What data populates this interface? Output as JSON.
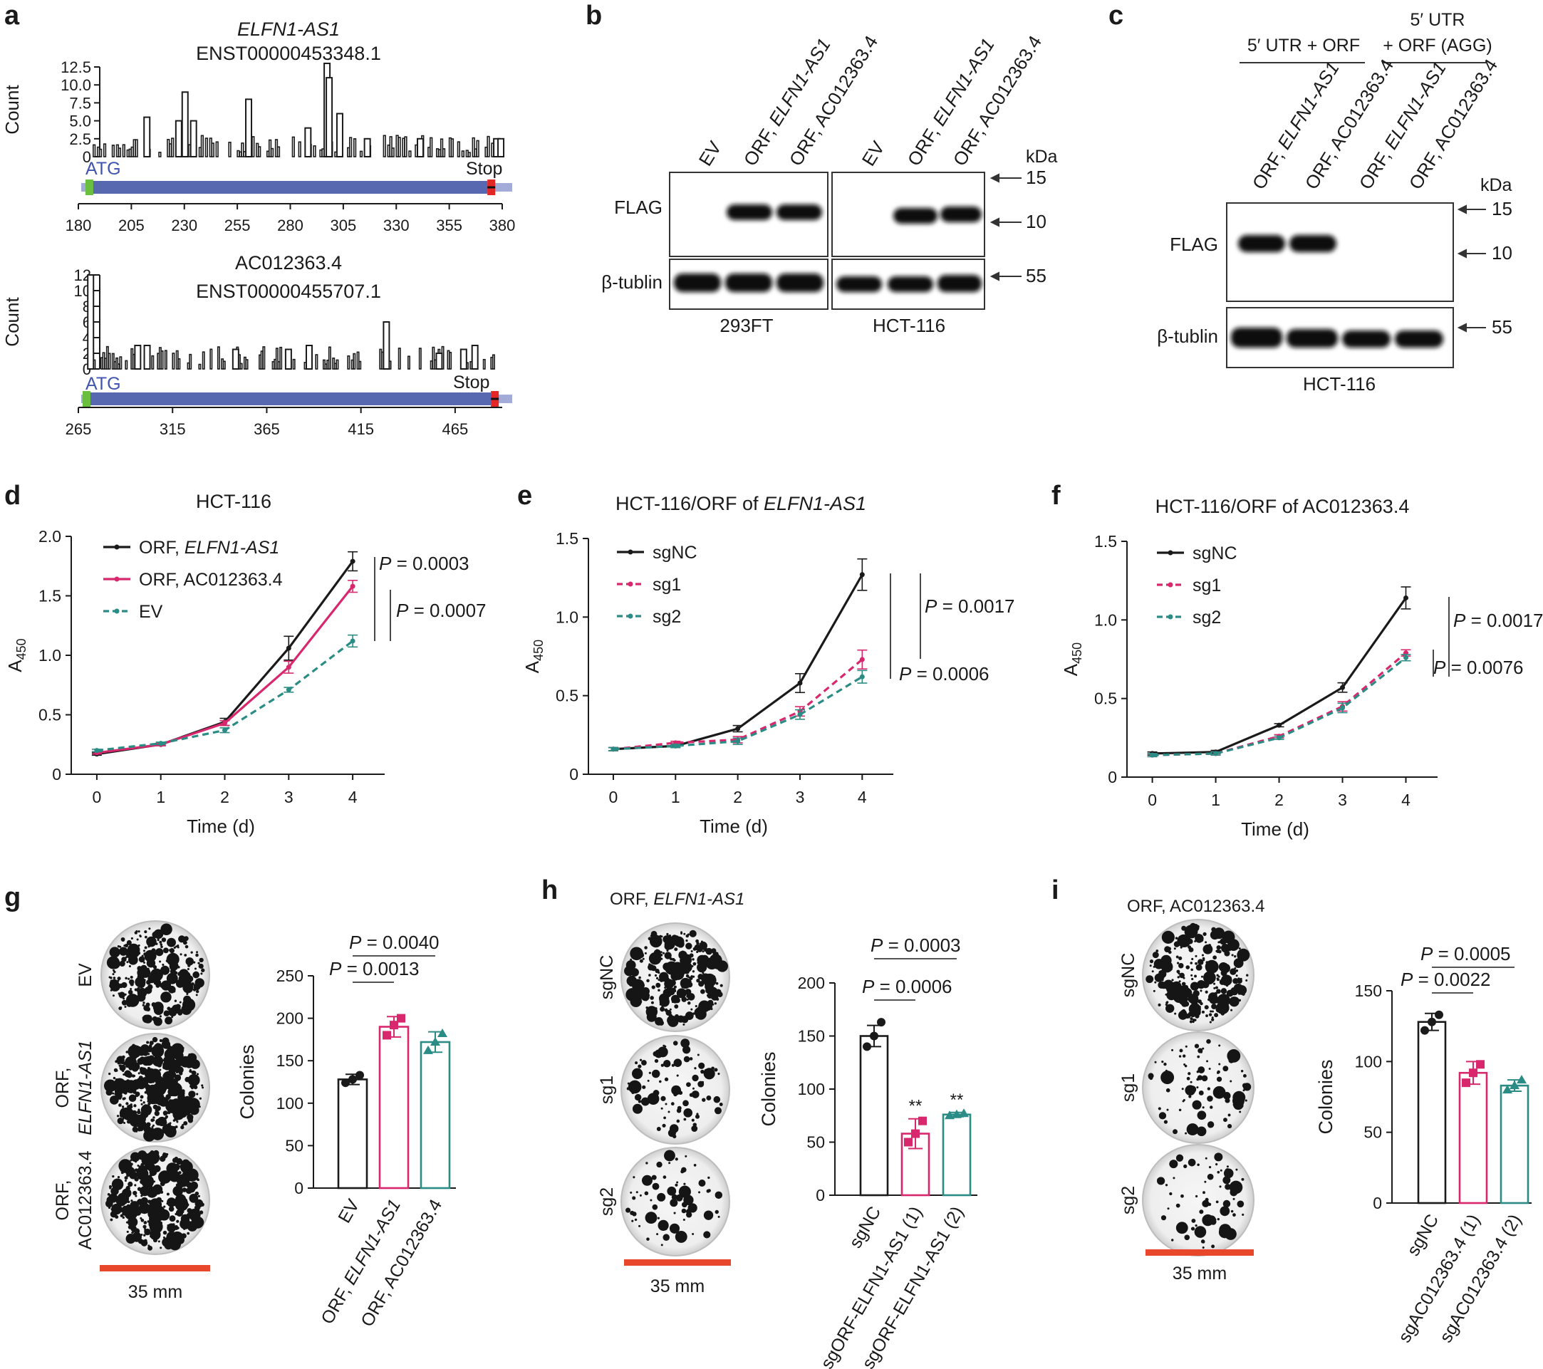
{
  "panel_labels": [
    "a",
    "b",
    "c",
    "d",
    "e",
    "f",
    "g",
    "h",
    "i"
  ],
  "colors": {
    "black": "#1a1a1a",
    "pink": "#d8276d",
    "teal": "#2a8c84",
    "scale_bar": "#e8472b",
    "bar_blue": "#5868b0",
    "bar_light": "#a3acd8",
    "atg_green": "#6abf3f",
    "stop_red": "#e32626"
  },
  "panel_a": [
    {
      "gene_italic": "ELFN1-AS1",
      "transcript": "ENST00000453348.1",
      "ylabel": "Count",
      "ylim": [
        0,
        12.5
      ],
      "yticks": [
        "0",
        "2.5",
        "5.0",
        "7.5",
        "10.0",
        "12.5"
      ],
      "yticks_v": [
        0,
        2.5,
        5,
        7.5,
        10,
        12.5
      ],
      "xlim": [
        180,
        380
      ],
      "xticks": [
        180,
        205,
        230,
        255,
        280,
        305,
        330,
        355,
        380
      ],
      "atg_label": "ATG",
      "stop_label": "Stop",
      "orf_start": 184,
      "orf_end": 373,
      "peaks": [
        [
          229,
          9.0
        ],
        [
          259,
          8.0
        ],
        [
          296,
          13.0
        ],
        [
          297,
          11.0
        ],
        [
          211,
          5.5
        ],
        [
          226,
          5.0
        ],
        [
          233,
          5.0
        ],
        [
          287,
          4.0
        ],
        [
          302,
          6.0
        ],
        [
          315,
          2.5
        ],
        [
          340,
          2.5
        ],
        [
          376,
          2.5
        ],
        [
          378,
          2.5
        ]
      ]
    },
    {
      "gene": "AC012363.4",
      "transcript": "ENST00000455707.1",
      "ylabel": "Count",
      "ylim": [
        0,
        12
      ],
      "yticks": [
        "0",
        "2",
        "4",
        "6",
        "8",
        "10",
        "12"
      ],
      "yticks_v": [
        0,
        2,
        4,
        6,
        8,
        10,
        12
      ],
      "xlim": [
        265,
        490
      ],
      "xticks": [
        265,
        315,
        365,
        415,
        465
      ],
      "atg_label": "ATG",
      "stop_label": "Stop",
      "orf_start": 268,
      "orf_end": 484,
      "peaks": [
        [
          270,
          12.0
        ],
        [
          427,
          6.0
        ],
        [
          295,
          3.0
        ],
        [
          300,
          3.0
        ],
        [
          347,
          2.5
        ],
        [
          375,
          2.5
        ],
        [
          386,
          3.0
        ],
        [
          474,
          3.0
        ],
        [
          468,
          2.5
        ],
        [
          455,
          2.0
        ]
      ]
    }
  ],
  "panel_b": {
    "lanes": [
      "EV",
      "ORF, ELFN1-AS1",
      "ORF, AC012363.4",
      "EV",
      "ORF, ELFN1-AS1",
      "ORF, AC012363.4"
    ],
    "lane_prefix": "ORF, ",
    "kda": "kDa",
    "markers": [
      "15",
      "10",
      "55"
    ],
    "row_labels": [
      "FLAG",
      "β-tublin"
    ],
    "cells": [
      "293FT",
      "HCT-116"
    ]
  },
  "panel_c": {
    "group_labels": [
      "5′ UTR + ORF",
      "5′ UTR",
      "+ ORF (AGG)"
    ],
    "lanes": [
      "ORF, ELFN1-AS1",
      "ORF, AC012363.4",
      "ORF, ELFN1-AS1",
      "ORF, AC012363.4"
    ],
    "kda": "kDa",
    "markers": [
      "15",
      "10",
      "55"
    ],
    "row_labels": [
      "FLAG",
      "β-tublin"
    ],
    "cell": "HCT-116"
  },
  "chart_data": [
    {
      "id": "d",
      "type": "line",
      "title": "HCT-116",
      "xlabel": "Time (d)",
      "ylabel": "A450",
      "x": [
        0,
        1,
        2,
        3,
        4
      ],
      "xlim": [
        -0.4,
        4.5
      ],
      "ylim": [
        0,
        2.0
      ],
      "yticks": [
        "0",
        "0.5",
        "1.0",
        "1.5",
        "2.0"
      ],
      "yticks_v": [
        0,
        0.5,
        1.0,
        1.5,
        2.0
      ],
      "xticks": [
        "0",
        "1",
        "2",
        "3",
        "4"
      ],
      "series": [
        {
          "name": "ORF, ELFN1-AS1",
          "name_prefix": "ORF, ",
          "name_italic": "ELFN1-AS1",
          "values": [
            0.17,
            0.25,
            0.44,
            1.06,
            1.79
          ],
          "err": [
            0.01,
            0.01,
            0.03,
            0.1,
            0.08
          ],
          "style": "solid",
          "color": "#1a1a1a"
        },
        {
          "name": "ORF, AC012363.4",
          "values": [
            0.18,
            0.25,
            0.43,
            0.9,
            1.58
          ],
          "err": [
            0.01,
            0.01,
            0.02,
            0.05,
            0.05
          ],
          "style": "solid",
          "color": "#d8276d"
        },
        {
          "name": "EV",
          "values": [
            0.2,
            0.26,
            0.37,
            0.71,
            1.12
          ],
          "err": [
            0.01,
            0.01,
            0.02,
            0.02,
            0.05
          ],
          "style": "dashed",
          "color": "#2a8c84"
        }
      ],
      "pvalues": [
        "P = 0.0003",
        "P = 0.0007"
      ]
    },
    {
      "id": "e",
      "type": "line",
      "title": "HCT-116/ORF of ",
      "title_italic": "ELFN1-AS1",
      "xlabel": "Time (d)",
      "ylabel": "A450",
      "x": [
        0,
        1,
        2,
        3,
        4
      ],
      "xlim": [
        -0.4,
        4.5
      ],
      "ylim": [
        0,
        1.5
      ],
      "yticks": [
        "0",
        "0.5",
        "1.0",
        "1.5"
      ],
      "yticks_v": [
        0,
        0.5,
        1.0,
        1.5
      ],
      "xticks": [
        "0",
        "1",
        "2",
        "3",
        "4"
      ],
      "series": [
        {
          "name": "sgNC",
          "values": [
            0.16,
            0.18,
            0.29,
            0.58,
            1.27
          ],
          "err": [
            0.01,
            0.01,
            0.02,
            0.06,
            0.1
          ],
          "style": "solid",
          "color": "#1a1a1a"
        },
        {
          "name": "sg1",
          "values": [
            0.16,
            0.2,
            0.22,
            0.4,
            0.73
          ],
          "err": [
            0.01,
            0.01,
            0.02,
            0.03,
            0.06
          ],
          "style": "dashed",
          "color": "#d8276d"
        },
        {
          "name": "sg2",
          "values": [
            0.16,
            0.18,
            0.21,
            0.38,
            0.62
          ],
          "err": [
            0.01,
            0.01,
            0.02,
            0.03,
            0.04
          ],
          "style": "dashed",
          "color": "#2a8c84"
        }
      ],
      "pvalues": [
        "P = 0.0017",
        "P = 0.0006"
      ]
    },
    {
      "id": "f",
      "type": "line",
      "title": "HCT-116/ORF of AC012363.4",
      "xlabel": "Time (d)",
      "ylabel": "A450",
      "x": [
        0,
        1,
        2,
        3,
        4
      ],
      "xlim": [
        -0.4,
        4.5
      ],
      "ylim": [
        0,
        1.5
      ],
      "yticks": [
        "0",
        "0.5",
        "1.0",
        "1.5"
      ],
      "yticks_v": [
        0,
        0.5,
        1.0,
        1.5
      ],
      "xticks": [
        "0",
        "1",
        "2",
        "3",
        "4"
      ],
      "series": [
        {
          "name": "sgNC",
          "values": [
            0.15,
            0.16,
            0.33,
            0.57,
            1.14
          ],
          "err": [
            0.01,
            0.01,
            0.01,
            0.03,
            0.07
          ],
          "style": "solid",
          "color": "#1a1a1a"
        },
        {
          "name": "sg1",
          "values": [
            0.14,
            0.15,
            0.26,
            0.45,
            0.79
          ],
          "err": [
            0.01,
            0.01,
            0.01,
            0.03,
            0.02
          ],
          "style": "dashed",
          "color": "#d8276d"
        },
        {
          "name": "sg2",
          "values": [
            0.14,
            0.15,
            0.25,
            0.44,
            0.76
          ],
          "err": [
            0.01,
            0.01,
            0.01,
            0.03,
            0.02
          ],
          "style": "dashed",
          "color": "#2a8c84"
        }
      ],
      "pvalues": [
        "P = 0.0017",
        "P = 0.0076"
      ]
    },
    {
      "id": "g",
      "type": "bar",
      "ylabel": "Colonies",
      "categories": [
        "EV",
        "ORF, ELFN1-AS1",
        "ORF, AC012363.4"
      ],
      "category_prefix": "ORF, ",
      "values": [
        128,
        190,
        172
      ],
      "err": [
        6,
        12,
        12
      ],
      "points": [
        [
          124,
          128,
          133
        ],
        [
          180,
          192,
          200
        ],
        [
          162,
          172,
          182
        ]
      ],
      "colors": [
        "#1a1a1a",
        "#d8276d",
        "#2a8c84"
      ],
      "ylim": [
        0,
        250
      ],
      "yticks": [
        "0",
        "50",
        "100",
        "150",
        "200",
        "250"
      ],
      "yticks_v": [
        0,
        50,
        100,
        150,
        200,
        250
      ],
      "pvalues": [
        "P = 0.0013",
        "P = 0.0040"
      ],
      "stars": [
        "",
        "",
        ""
      ],
      "plate_labels": [
        "EV",
        "ORF,",
        "ELFN1-AS1",
        "ORF,",
        "AC012363.4"
      ],
      "scale_label": "35 mm"
    },
    {
      "id": "h",
      "type": "bar",
      "ylabel": "Colonies",
      "header": "ORF, ",
      "header_italic": "ELFN1-AS1",
      "categories": [
        "sgNC",
        "sgORF-ELFN1-AS1 (1)",
        "sgORF-ELFN1-AS1 (2)"
      ],
      "values": [
        150,
        58,
        76
      ],
      "err": [
        10,
        14,
        2
      ],
      "points": [
        [
          140,
          150,
          163
        ],
        [
          50,
          58,
          70
        ],
        [
          75,
          76,
          77
        ]
      ],
      "colors": [
        "#1a1a1a",
        "#d8276d",
        "#2a8c84"
      ],
      "ylim": [
        0,
        200
      ],
      "yticks": [
        "0",
        "50",
        "100",
        "150",
        "200"
      ],
      "yticks_v": [
        0,
        50,
        100,
        150,
        200
      ],
      "pvalues": [
        "P = 0.0006",
        "P = 0.0003"
      ],
      "stars": [
        "",
        "**",
        "**"
      ],
      "plate_labels": [
        "sgNC",
        "sg1",
        "sg2"
      ],
      "scale_label": "35 mm"
    },
    {
      "id": "i",
      "type": "bar",
      "ylabel": "Colonies",
      "header": "ORF, AC012363.4",
      "categories": [
        "sgNC",
        "sgAC012363.4 (1)",
        "sgAC012363.4 (2)"
      ],
      "values": [
        128,
        92,
        83
      ],
      "err": [
        6,
        8,
        4
      ],
      "points": [
        [
          122,
          128,
          133
        ],
        [
          85,
          92,
          98
        ],
        [
          80,
          83,
          87
        ]
      ],
      "colors": [
        "#1a1a1a",
        "#d8276d",
        "#2a8c84"
      ],
      "ylim": [
        0,
        150
      ],
      "yticks": [
        "0",
        "50",
        "100",
        "150"
      ],
      "yticks_v": [
        0,
        50,
        100,
        150
      ],
      "pvalues": [
        "P = 0.0022",
        "P = 0.0005"
      ],
      "stars": [
        "",
        "",
        ""
      ],
      "plate_labels": [
        "sgNC",
        "sg1",
        "sg2"
      ],
      "scale_label": "35 mm"
    }
  ]
}
